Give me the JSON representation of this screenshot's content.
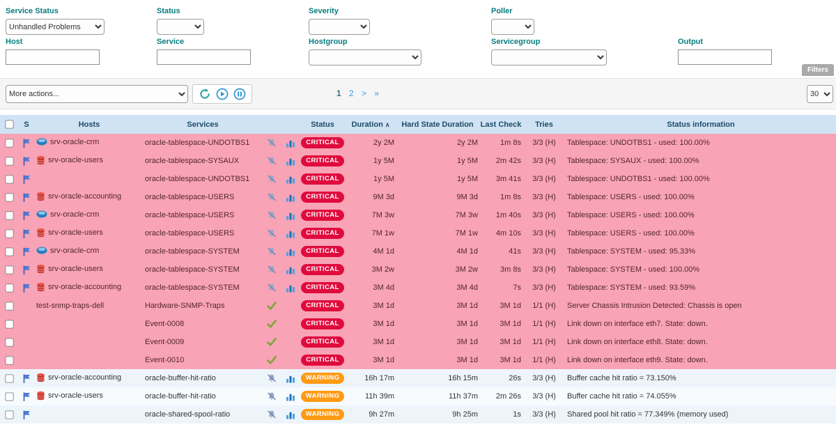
{
  "colors": {
    "critical_badge": "#e00b3d",
    "warning_badge": "#ff9a13",
    "critical_row": "#f8a3b6",
    "table_header_bg": "#cfe3f4",
    "filter_label": "#077d80",
    "table_header_text": "#1e4a66"
  },
  "filters": {
    "service_status": {
      "label": "Service Status",
      "value": "Unhandled Problems"
    },
    "status": {
      "label": "Status",
      "value": ""
    },
    "severity": {
      "label": "Severity",
      "value": ""
    },
    "poller": {
      "label": "Poller",
      "value": ""
    },
    "host": {
      "label": "Host",
      "value": ""
    },
    "service": {
      "label": "Service",
      "value": ""
    },
    "hostgroup": {
      "label": "Hostgroup",
      "value": ""
    },
    "servicegroup": {
      "label": "Servicegroup",
      "value": ""
    },
    "output": {
      "label": "Output",
      "value": ""
    },
    "filters_button": "Filters"
  },
  "toolbar": {
    "more_actions": "More actions...",
    "icons": [
      "refresh-icon",
      "play-icon",
      "pause-icon"
    ],
    "pagination": {
      "pages": [
        "1",
        "2"
      ],
      "current": "1",
      "next": ">",
      "last": "»"
    },
    "per_page": "30"
  },
  "table": {
    "headers": [
      "",
      "S",
      "Hosts",
      "Services",
      "",
      "",
      "Status",
      "Duration",
      "Hard State Duration",
      "Last Check",
      "Tries",
      "Status information"
    ],
    "sorted_column": "Duration",
    "sort_indicator": "∧",
    "rows": [
      {
        "flag": true,
        "host_icon": "cloud",
        "host": "srv-oracle-crm",
        "service": "oracle-tablespace-UNDOTBS1",
        "state_icons": [
          "bell-slash",
          "chart"
        ],
        "status": "CRITICAL",
        "duration": "2y 2M",
        "hard_state_duration": "2y 2M",
        "last_check": "1m 8s",
        "tries": "3/3 (H)",
        "info": "Tablespace: UNDOTBS1 - used: 100.00%"
      },
      {
        "flag": true,
        "host_icon": "database",
        "host": "srv-oracle-users",
        "service": "oracle-tablespace-SYSAUX",
        "state_icons": [
          "bell-slash",
          "chart"
        ],
        "status": "CRITICAL",
        "duration": "1y 5M",
        "hard_state_duration": "1y 5M",
        "last_check": "2m 42s",
        "tries": "3/3 (H)",
        "info": "Tablespace: SYSAUX - used: 100.00%"
      },
      {
        "flag": true,
        "host_icon": "",
        "host": "",
        "service": "oracle-tablespace-UNDOTBS1",
        "state_icons": [
          "bell-slash",
          "chart"
        ],
        "status": "CRITICAL",
        "duration": "1y 5M",
        "hard_state_duration": "1y 5M",
        "last_check": "3m 41s",
        "tries": "3/3 (H)",
        "info": "Tablespace: UNDOTBS1 - used: 100.00%"
      },
      {
        "flag": true,
        "host_icon": "database",
        "host": "srv-oracle-accounting",
        "service": "oracle-tablespace-USERS",
        "state_icons": [
          "bell-slash",
          "chart"
        ],
        "status": "CRITICAL",
        "duration": "9M 3d",
        "hard_state_duration": "9M 3d",
        "last_check": "1m 8s",
        "tries": "3/3 (H)",
        "info": "Tablespace: USERS - used: 100.00%"
      },
      {
        "flag": true,
        "host_icon": "cloud",
        "host": "srv-oracle-crm",
        "service": "oracle-tablespace-USERS",
        "state_icons": [
          "bell-slash",
          "chart"
        ],
        "status": "CRITICAL",
        "duration": "7M 3w",
        "hard_state_duration": "7M 3w",
        "last_check": "1m 40s",
        "tries": "3/3 (H)",
        "info": "Tablespace: USERS - used: 100.00%"
      },
      {
        "flag": true,
        "host_icon": "database",
        "host": "srv-oracle-users",
        "service": "oracle-tablespace-USERS",
        "state_icons": [
          "bell-slash",
          "chart"
        ],
        "status": "CRITICAL",
        "duration": "7M 1w",
        "hard_state_duration": "7M 1w",
        "last_check": "4m 10s",
        "tries": "3/3 (H)",
        "info": "Tablespace: USERS - used: 100.00%"
      },
      {
        "flag": true,
        "host_icon": "cloud",
        "host": "srv-oracle-crm",
        "service": "oracle-tablespace-SYSTEM",
        "state_icons": [
          "bell-slash",
          "chart"
        ],
        "status": "CRITICAL",
        "duration": "4M 1d",
        "hard_state_duration": "4M 1d",
        "last_check": "41s",
        "tries": "3/3 (H)",
        "info": "Tablespace: SYSTEM - used: 95.33%"
      },
      {
        "flag": true,
        "host_icon": "database",
        "host": "srv-oracle-users",
        "service": "oracle-tablespace-SYSTEM",
        "state_icons": [
          "bell-slash",
          "chart"
        ],
        "status": "CRITICAL",
        "duration": "3M 2w",
        "hard_state_duration": "3M 2w",
        "last_check": "3m 8s",
        "tries": "3/3 (H)",
        "info": "Tablespace: SYSTEM - used: 100.00%"
      },
      {
        "flag": true,
        "host_icon": "database",
        "host": "srv-oracle-accounting",
        "service": "oracle-tablespace-SYSTEM",
        "state_icons": [
          "bell-slash",
          "chart"
        ],
        "status": "CRITICAL",
        "duration": "3M 4d",
        "hard_state_duration": "3M 4d",
        "last_check": "7s",
        "tries": "3/3 (H)",
        "info": "Tablespace: SYSTEM - used: 93.59%"
      },
      {
        "flag": false,
        "host_icon": "",
        "host": "test-snmp-traps-dell",
        "service": "Hardware-SNMP-Traps",
        "state_icons": [
          "check"
        ],
        "status": "CRITICAL",
        "duration": "3M 1d",
        "hard_state_duration": "3M 1d",
        "last_check": "3M 1d",
        "tries": "1/1 (H)",
        "info": "Server Chassis Intrusion Detected: Chassis is open"
      },
      {
        "flag": false,
        "host_icon": "",
        "host": "",
        "service": "Event-0008",
        "state_icons": [
          "check"
        ],
        "status": "CRITICAL",
        "duration": "3M 1d",
        "hard_state_duration": "3M 1d",
        "last_check": "3M 1d",
        "tries": "1/1 (H)",
        "info": "Link down on interface eth7. State: down."
      },
      {
        "flag": false,
        "host_icon": "",
        "host": "",
        "service": "Event-0009",
        "state_icons": [
          "check"
        ],
        "status": "CRITICAL",
        "duration": "3M 1d",
        "hard_state_duration": "3M 1d",
        "last_check": "3M 1d",
        "tries": "1/1 (H)",
        "info": "Link down on interface eth8. State: down."
      },
      {
        "flag": false,
        "host_icon": "",
        "host": "",
        "service": "Event-0010",
        "state_icons": [
          "check"
        ],
        "status": "CRITICAL",
        "duration": "3M 1d",
        "hard_state_duration": "3M 1d",
        "last_check": "3M 1d",
        "tries": "1/1 (H)",
        "info": "Link down on interface eth9. State: down."
      },
      {
        "flag": true,
        "host_icon": "database",
        "host": "srv-oracle-accounting",
        "service": "oracle-buffer-hit-ratio",
        "state_icons": [
          "bell-slash",
          "chart"
        ],
        "status": "WARNING",
        "duration": "16h 17m",
        "hard_state_duration": "16h 15m",
        "last_check": "26s",
        "tries": "3/3 (H)",
        "info": "Buffer cache hit ratio = 73.150%"
      },
      {
        "flag": true,
        "host_icon": "database",
        "host": "srv-oracle-users",
        "service": "oracle-buffer-hit-ratio",
        "state_icons": [
          "bell-slash",
          "chart"
        ],
        "status": "WARNING",
        "duration": "11h 39m",
        "hard_state_duration": "11h 37m",
        "last_check": "2m 26s",
        "tries": "3/3 (H)",
        "info": "Buffer cache hit ratio = 74.055%"
      },
      {
        "flag": true,
        "host_icon": "",
        "host": "",
        "service": "oracle-shared-spool-ratio",
        "state_icons": [
          "bell-slash",
          "chart"
        ],
        "status": "WARNING",
        "duration": "9h 27m",
        "hard_state_duration": "9h 25m",
        "last_check": "1s",
        "tries": "3/3 (H)",
        "info": "Shared pool hit ratio = 77.349% (memory used)"
      }
    ]
  }
}
